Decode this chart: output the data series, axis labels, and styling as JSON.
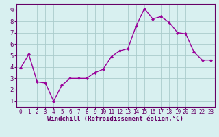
{
  "x": [
    0,
    1,
    2,
    3,
    4,
    5,
    6,
    7,
    8,
    9,
    10,
    11,
    12,
    13,
    14,
    15,
    16,
    17,
    18,
    19,
    20,
    21,
    22,
    23
  ],
  "y": [
    3.9,
    5.1,
    2.7,
    2.6,
    1.0,
    2.4,
    3.0,
    3.0,
    3.0,
    3.5,
    3.8,
    4.9,
    5.4,
    5.6,
    7.6,
    9.1,
    8.2,
    8.4,
    7.9,
    7.0,
    6.9,
    5.3,
    4.6,
    4.6
  ],
  "line_color": "#990099",
  "marker": "D",
  "marker_size": 2.0,
  "linewidth": 1.0,
  "bg_color": "#d8f0f0",
  "grid_color": "#aacccc",
  "xlabel": "Windchill (Refroidissement éolien,°C)",
  "ylabel": "",
  "xlim": [
    -0.5,
    23.5
  ],
  "ylim": [
    0.5,
    9.5
  ],
  "yticks": [
    1,
    2,
    3,
    4,
    5,
    6,
    7,
    8,
    9
  ],
  "xticks": [
    0,
    1,
    2,
    3,
    4,
    5,
    6,
    7,
    8,
    9,
    10,
    11,
    12,
    13,
    14,
    15,
    16,
    17,
    18,
    19,
    20,
    21,
    22,
    23
  ],
  "tick_color": "#660066",
  "label_color": "#660066",
  "xlabel_fontsize": 6.5,
  "ytick_fontsize": 6.5,
  "xtick_fontsize": 5.5,
  "spine_color": "#660066"
}
